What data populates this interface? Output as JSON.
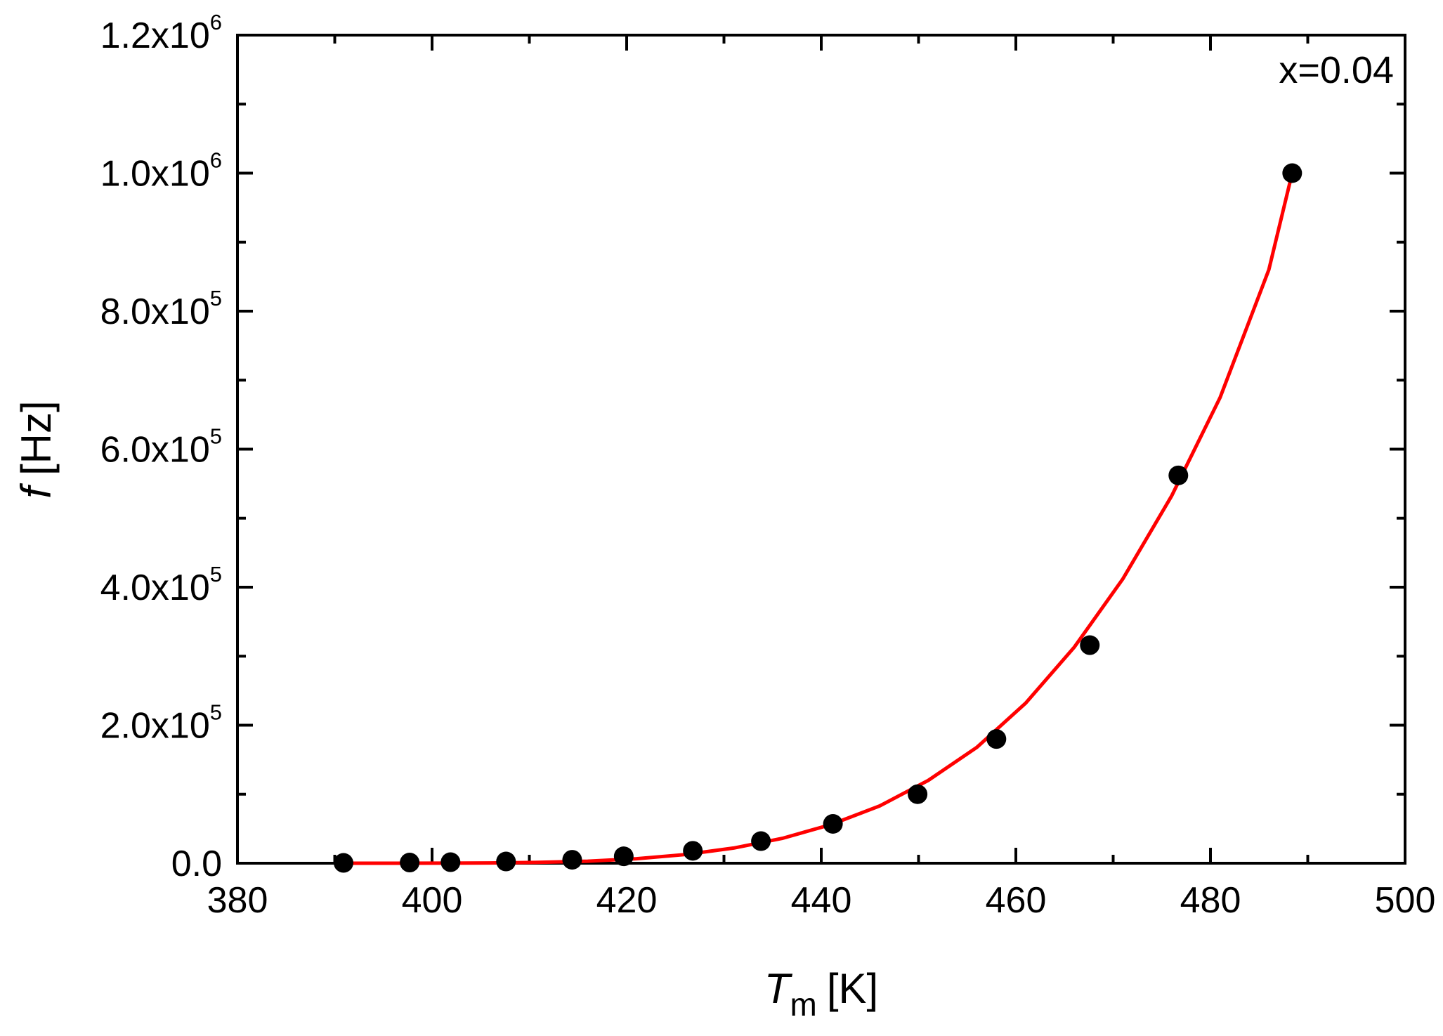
{
  "chart_data": {
    "type": "scatter",
    "annotation": "x=0.04",
    "xlabel": {
      "main": "T",
      "sub": "m",
      "unit": "[K]"
    },
    "ylabel": {
      "main": "f",
      "unit": "[Hz]"
    },
    "xlim": [
      380,
      500
    ],
    "ylim": [
      0,
      1200000
    ],
    "x_ticks": [
      {
        "value": 380,
        "label": "380"
      },
      {
        "value": 400,
        "label": "400"
      },
      {
        "value": 420,
        "label": "420"
      },
      {
        "value": 440,
        "label": "440"
      },
      {
        "value": 460,
        "label": "460"
      },
      {
        "value": 480,
        "label": "480"
      },
      {
        "value": 500,
        "label": "500"
      }
    ],
    "y_ticks": [
      {
        "value": 0,
        "mantissa": "0.0",
        "exp": ""
      },
      {
        "value": 200000,
        "mantissa": "2.0x10",
        "exp": "5"
      },
      {
        "value": 400000,
        "mantissa": "4.0x10",
        "exp": "5"
      },
      {
        "value": 600000,
        "mantissa": "6.0x10",
        "exp": "5"
      },
      {
        "value": 800000,
        "mantissa": "8.0x10",
        "exp": "5"
      },
      {
        "value": 1000000,
        "mantissa": "1.0x10",
        "exp": "6"
      },
      {
        "value": 1200000,
        "mantissa": "1.2x10",
        "exp": "6"
      }
    ],
    "x_minor_step": 10,
    "y_minor_step": 100000,
    "series": [
      {
        "kind": "points",
        "color": "#000000",
        "x": [
          390.9,
          397.7,
          401.9,
          407.6,
          414.4,
          419.7,
          426.8,
          433.8,
          441.2,
          449.9,
          458.0,
          467.6,
          476.7,
          488.4
        ],
        "y": [
          500,
          1000,
          1500,
          2500,
          5000,
          10000,
          18000,
          32000,
          57000,
          100000,
          180000,
          316000,
          562000,
          1000000
        ]
      },
      {
        "kind": "fit",
        "color": "#ff0000",
        "x": [
          391,
          396,
          401,
          406,
          411,
          416,
          421,
          426,
          431,
          436,
          441,
          446,
          451,
          456,
          461,
          466,
          471,
          476,
          481,
          486,
          488.4
        ],
        "y": [
          0,
          0,
          100,
          400,
          1200,
          3000,
          6500,
          12500,
          22000,
          36000,
          56000,
          83000,
          120000,
          168000,
          232000,
          313000,
          412000,
          532000,
          675000,
          860000,
          1000000
        ]
      }
    ]
  }
}
